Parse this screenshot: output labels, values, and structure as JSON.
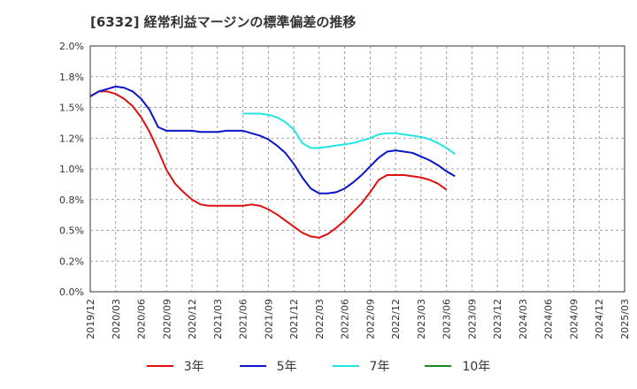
{
  "chart_data": {
    "type": "line",
    "title": "[6332]  経常利益マージンの標準偏差の推移",
    "xlabel": "",
    "ylabel": "",
    "ylim": [
      0,
      2.0
    ],
    "yticks": [
      "0.0%",
      "0.2%",
      "0.5%",
      "0.8%",
      "1.0%",
      "1.2%",
      "1.5%",
      "1.8%",
      "2.0%"
    ],
    "xticks": [
      "2019/12",
      "2020/03",
      "2020/06",
      "2020/09",
      "2020/12",
      "2021/03",
      "2021/06",
      "2021/09",
      "2021/12",
      "2022/03",
      "2022/06",
      "2022/09",
      "2022/12",
      "2023/03",
      "2023/06",
      "2023/09",
      "2023/12",
      "2024/03",
      "2024/06",
      "2024/09",
      "2024/12",
      "2025/03"
    ],
    "grid": true,
    "legend_position": "bottom",
    "series": [
      {
        "name": "3年",
        "color": "#e01010",
        "start_index": 0,
        "values": [
          1.59,
          1.63,
          1.63,
          1.61,
          1.57,
          1.51,
          1.42,
          1.3,
          1.15,
          0.99,
          0.88,
          0.81,
          0.75,
          0.71,
          0.7,
          0.7,
          0.7,
          0.7,
          0.7,
          0.71,
          0.7,
          0.67,
          0.63,
          0.58,
          0.53,
          0.48,
          0.45,
          0.44,
          0.47,
          0.52,
          0.58,
          0.65,
          0.72,
          0.81,
          0.91,
          0.95,
          0.95,
          0.95,
          0.94,
          0.93,
          0.91,
          0.88,
          0.83
        ]
      },
      {
        "name": "5年",
        "color": "#0a14c8",
        "start_index": 0,
        "values": [
          1.59,
          1.63,
          1.65,
          1.67,
          1.66,
          1.63,
          1.57,
          1.48,
          1.34,
          1.31,
          1.31,
          1.31,
          1.31,
          1.3,
          1.3,
          1.3,
          1.31,
          1.31,
          1.31,
          1.29,
          1.27,
          1.24,
          1.19,
          1.13,
          1.04,
          0.93,
          0.84,
          0.8,
          0.8,
          0.81,
          0.84,
          0.89,
          0.95,
          1.02,
          1.09,
          1.14,
          1.15,
          1.14,
          1.13,
          1.1,
          1.07,
          1.03,
          0.98,
          0.94
        ]
      },
      {
        "name": "7年",
        "color": "#22e6e6",
        "start_index": 18,
        "values": [
          1.45,
          1.45,
          1.45,
          1.44,
          1.42,
          1.38,
          1.32,
          1.21,
          1.17,
          1.17,
          1.18,
          1.19,
          1.2,
          1.21,
          1.23,
          1.25,
          1.28,
          1.29,
          1.29,
          1.28,
          1.27,
          1.26,
          1.24,
          1.21,
          1.17,
          1.12
        ]
      },
      {
        "name": "10年",
        "color": "#1a8a1a",
        "start_index": 0,
        "values": []
      }
    ]
  }
}
